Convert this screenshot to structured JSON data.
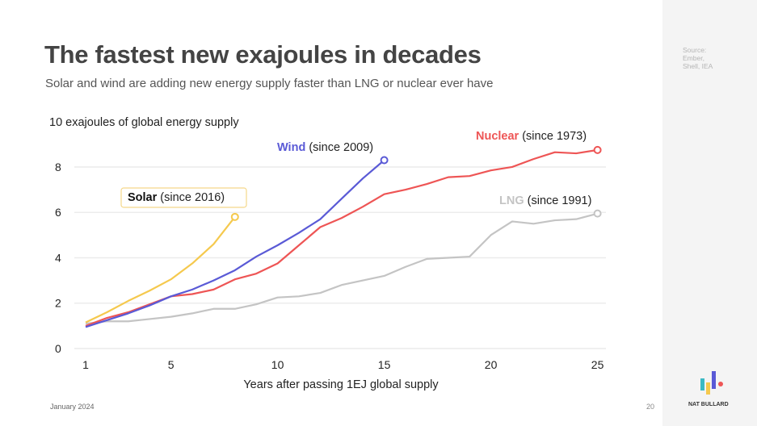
{
  "title": "The fastest new exajoules in decades",
  "subtitle": "Solar and wind are adding new energy supply faster than LNG or nuclear ever have",
  "source": "Source: Ember, Shell, IEA",
  "footer_date": "January 2024",
  "page_number": "20",
  "brand": "NAT BULLARD",
  "chart_data": {
    "type": "line",
    "title": "",
    "ylabel": "10 exajoules of global energy supply",
    "xlabel": "Years after passing 1EJ global supply",
    "xlim": [
      1,
      25
    ],
    "ylim": [
      0,
      9
    ],
    "xticks": [
      1,
      5,
      10,
      15,
      20,
      25
    ],
    "yticks": [
      0,
      2,
      4,
      6,
      8
    ],
    "grid": "horizontal",
    "series": [
      {
        "name": "Solar",
        "label_suffix": "(since 2016)",
        "color": "#f5c94e",
        "x": [
          1,
          2,
          3,
          4,
          5,
          6,
          7,
          8
        ],
        "values": [
          1.15,
          1.6,
          2.1,
          2.55,
          3.05,
          3.75,
          4.6,
          5.8
        ]
      },
      {
        "name": "Wind",
        "label_suffix": "(since 2009)",
        "color": "#5a5ad6",
        "x": [
          1,
          2,
          3,
          4,
          5,
          6,
          7,
          8,
          9,
          10,
          11,
          12,
          13,
          14,
          15
        ],
        "values": [
          0.95,
          1.25,
          1.55,
          1.9,
          2.3,
          2.6,
          3.0,
          3.45,
          4.05,
          4.55,
          5.1,
          5.7,
          6.6,
          7.5,
          8.3
        ]
      },
      {
        "name": "Nuclear",
        "label_suffix": "(since 1973)",
        "color": "#ee5555",
        "x": [
          1,
          2,
          3,
          4,
          5,
          6,
          7,
          8,
          9,
          10,
          11,
          12,
          13,
          14,
          15,
          16,
          17,
          18,
          19,
          20,
          21,
          22,
          23,
          24,
          25
        ],
        "values": [
          1.0,
          1.35,
          1.6,
          1.95,
          2.3,
          2.4,
          2.6,
          3.05,
          3.3,
          3.75,
          4.55,
          5.35,
          5.75,
          6.25,
          6.8,
          7.0,
          7.25,
          7.55,
          7.6,
          7.85,
          8.0,
          8.35,
          8.65,
          8.6,
          8.75
        ]
      },
      {
        "name": "LNG",
        "label_suffix": "(since 1991)",
        "color": "#c4c4c4",
        "x": [
          1,
          2,
          3,
          4,
          5,
          6,
          7,
          8,
          9,
          10,
          11,
          12,
          13,
          14,
          15,
          16,
          17,
          18,
          19,
          20,
          21,
          22,
          23,
          24,
          25
        ],
        "values": [
          1.1,
          1.2,
          1.2,
          1.3,
          1.4,
          1.55,
          1.75,
          1.75,
          1.95,
          2.25,
          2.3,
          2.45,
          2.8,
          3.0,
          3.2,
          3.6,
          3.95,
          4.0,
          4.05,
          5.0,
          5.6,
          5.5,
          5.65,
          5.7,
          5.95
        ]
      }
    ]
  }
}
